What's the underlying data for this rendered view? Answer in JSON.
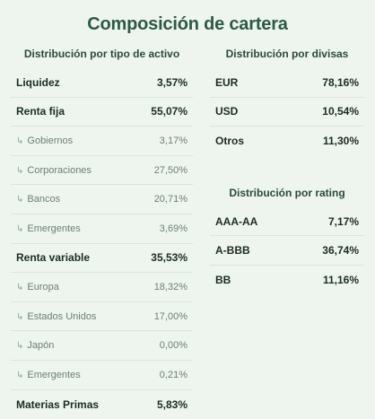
{
  "title": "Composición de cartera",
  "asset_type": {
    "heading": "Distribución por tipo de activo",
    "rows": [
      {
        "label": "Liquidez",
        "value": "3,57%",
        "kind": "main"
      },
      {
        "label": "Renta fija",
        "value": "55,07%",
        "kind": "main"
      },
      {
        "label": "Gobiernos",
        "value": "3,17%",
        "kind": "sub"
      },
      {
        "label": "Corporaciones",
        "value": "27,50%",
        "kind": "sub"
      },
      {
        "label": "Bancos",
        "value": "20,71%",
        "kind": "sub"
      },
      {
        "label": "Emergentes",
        "value": "3,69%",
        "kind": "sub"
      },
      {
        "label": "Renta variable",
        "value": "35,53%",
        "kind": "main"
      },
      {
        "label": "Europa",
        "value": "18,32%",
        "kind": "sub"
      },
      {
        "label": "Estados Unidos",
        "value": "17,00%",
        "kind": "sub"
      },
      {
        "label": "Japón",
        "value": "0,00%",
        "kind": "sub"
      },
      {
        "label": "Emergentes",
        "value": "0,21%",
        "kind": "sub"
      },
      {
        "label": "Materias Primas",
        "value": "5,83%",
        "kind": "main"
      }
    ]
  },
  "currency": {
    "heading": "Distribución por divisas",
    "rows": [
      {
        "label": "EUR",
        "value": "78,16%"
      },
      {
        "label": "USD",
        "value": "10,54%"
      },
      {
        "label": "Otros",
        "value": "11,30%"
      }
    ]
  },
  "rating": {
    "heading": "Distribución por rating",
    "rows": [
      {
        "label": "AAA-AA",
        "value": "7,17%"
      },
      {
        "label": "A-BBB",
        "value": "36,74%"
      },
      {
        "label": "BB",
        "value": "11,16%"
      }
    ]
  },
  "icons": {
    "sub_arrow": "↳"
  }
}
